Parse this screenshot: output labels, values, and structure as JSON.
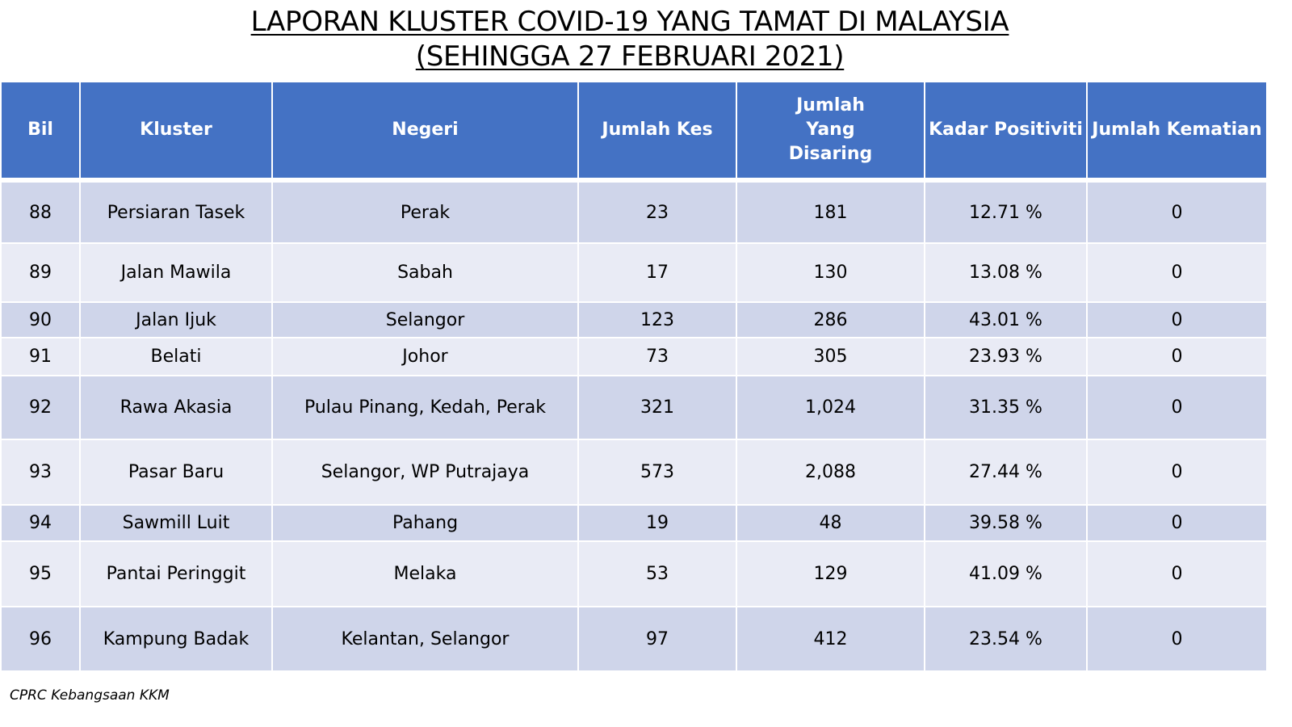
{
  "title": {
    "line1": "LAPORAN KLUSTER COVID-19 YANG TAMAT DI MALAYSIA",
    "line2": "(SEHINGGA  27 FEBRUARI 2021)"
  },
  "table": {
    "headers": {
      "bil": "Bil",
      "kluster": "Kluster",
      "negeri": "Negeri",
      "jumlah_kes": "Jumlah Kes",
      "jumlah_disaring": "Jumlah Yang Disaring",
      "kadar_positiviti": "Kadar Positiviti",
      "jumlah_kematian": "Jumlah Kematian"
    },
    "rows": [
      {
        "bil": "88",
        "kluster": "Persiaran Tasek",
        "negeri": "Perak",
        "jumlah_kes": "23",
        "jumlah_disaring": "181",
        "kadar_positiviti": "12.71 %",
        "jumlah_kematian": "0"
      },
      {
        "bil": "89",
        "kluster": "Jalan Mawila",
        "negeri": "Sabah",
        "jumlah_kes": "17",
        "jumlah_disaring": "130",
        "kadar_positiviti": "13.08 %",
        "jumlah_kematian": "0"
      },
      {
        "bil": "90",
        "kluster": "Jalan Ijuk",
        "negeri": "Selangor",
        "jumlah_kes": "123",
        "jumlah_disaring": "286",
        "kadar_positiviti": "43.01 %",
        "jumlah_kematian": "0"
      },
      {
        "bil": "91",
        "kluster": "Belati",
        "negeri": "Johor",
        "jumlah_kes": "73",
        "jumlah_disaring": "305",
        "kadar_positiviti": "23.93 %",
        "jumlah_kematian": "0"
      },
      {
        "bil": "92",
        "kluster": "Rawa Akasia",
        "negeri": "Pulau Pinang, Kedah, Perak",
        "jumlah_kes": "321",
        "jumlah_disaring": "1,024",
        "kadar_positiviti": "31.35 %",
        "jumlah_kematian": "0"
      },
      {
        "bil": "93",
        "kluster": "Pasar Baru",
        "negeri": "Selangor, WP Putrajaya",
        "jumlah_kes": "573",
        "jumlah_disaring": "2,088",
        "kadar_positiviti": "27.44 %",
        "jumlah_kematian": "0"
      },
      {
        "bil": "94",
        "kluster": "Sawmill Luit",
        "negeri": "Pahang",
        "jumlah_kes": "19",
        "jumlah_disaring": "48",
        "kadar_positiviti": "39.58 %",
        "jumlah_kematian": "0"
      },
      {
        "bil": "95",
        "kluster": "Pantai Peringgit",
        "negeri": "Melaka",
        "jumlah_kes": "53",
        "jumlah_disaring": "129",
        "kadar_positiviti": "41.09 %",
        "jumlah_kematian": "0"
      },
      {
        "bil": "96",
        "kluster": "Kampung Badak",
        "negeri": "Kelantan, Selangor",
        "jumlah_kes": "97",
        "jumlah_disaring": "412",
        "kadar_positiviti": "23.54 %",
        "jumlah_kematian": "0"
      }
    ]
  },
  "footer": {
    "source": "CPRC Kebangsaan KKM"
  },
  "colors": {
    "header_bg": "#4472c4",
    "row_dark": "#cfd5ea",
    "row_light": "#e9ebf5"
  }
}
